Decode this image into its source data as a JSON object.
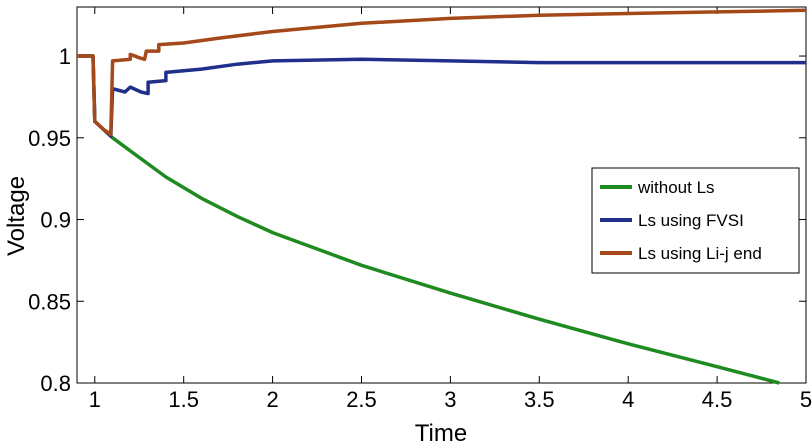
{
  "chart_data": {
    "type": "line",
    "title": "",
    "xlabel": "Time",
    "ylabel": "Voltage",
    "xlim": [
      0.9,
      5
    ],
    "ylim": [
      0.8,
      1.03
    ],
    "xticks": [
      1,
      1.5,
      2,
      2.5,
      3,
      3.5,
      4,
      4.5,
      5
    ],
    "xtick_labels": [
      "1",
      "1.5",
      "2",
      "2.5",
      "3",
      "3.5",
      "4",
      "4.5",
      "5"
    ],
    "yticks": [
      0.8,
      0.85,
      0.9,
      0.95,
      1
    ],
    "ytick_labels": [
      "0.8",
      "0.85",
      "0.9",
      "0.95",
      "1"
    ],
    "grid": false,
    "legend_position": "right",
    "series": [
      {
        "name": "without Ls",
        "color": "#1f8a1f",
        "points": [
          [
            0.9,
            1.0
          ],
          [
            0.99,
            1.0
          ],
          [
            1.0,
            0.96
          ],
          [
            1.05,
            0.955
          ],
          [
            1.1,
            0.95
          ],
          [
            1.2,
            0.942
          ],
          [
            1.4,
            0.926
          ],
          [
            1.6,
            0.913
          ],
          [
            1.8,
            0.902
          ],
          [
            2.0,
            0.892
          ],
          [
            2.5,
            0.872
          ],
          [
            3.0,
            0.855
          ],
          [
            3.5,
            0.839
          ],
          [
            4.0,
            0.824
          ],
          [
            4.5,
            0.81
          ],
          [
            4.85,
            0.8
          ]
        ]
      },
      {
        "name": "Ls using FVSI",
        "color": "#1f2f8a",
        "points": [
          [
            0.9,
            1.0
          ],
          [
            0.99,
            1.0
          ],
          [
            1.0,
            0.96
          ],
          [
            1.05,
            0.955
          ],
          [
            1.09,
            0.951
          ],
          [
            1.1,
            0.98
          ],
          [
            1.17,
            0.978
          ],
          [
            1.2,
            0.981
          ],
          [
            1.26,
            0.978
          ],
          [
            1.3,
            0.977
          ],
          [
            1.3,
            0.984
          ],
          [
            1.4,
            0.985
          ],
          [
            1.4,
            0.99
          ],
          [
            1.6,
            0.992
          ],
          [
            1.8,
            0.995
          ],
          [
            2.0,
            0.997
          ],
          [
            2.5,
            0.998
          ],
          [
            3.0,
            0.997
          ],
          [
            3.5,
            0.996
          ],
          [
            4.0,
            0.996
          ],
          [
            4.5,
            0.996
          ],
          [
            5.0,
            0.996
          ]
        ]
      },
      {
        "name": "Ls using Li-j end",
        "color": "#a5481a",
        "points": [
          [
            0.9,
            1.0
          ],
          [
            0.99,
            1.0
          ],
          [
            1.0,
            0.96
          ],
          [
            1.05,
            0.955
          ],
          [
            1.09,
            0.952
          ],
          [
            1.1,
            0.997
          ],
          [
            1.2,
            0.998
          ],
          [
            1.2,
            1.001
          ],
          [
            1.25,
            0.999
          ],
          [
            1.28,
            0.998
          ],
          [
            1.29,
            1.003
          ],
          [
            1.36,
            1.003
          ],
          [
            1.36,
            1.007
          ],
          [
            1.5,
            1.008
          ],
          [
            1.7,
            1.011
          ],
          [
            2.0,
            1.015
          ],
          [
            2.5,
            1.02
          ],
          [
            3.0,
            1.023
          ],
          [
            3.5,
            1.025
          ],
          [
            4.0,
            1.026
          ],
          [
            4.5,
            1.027
          ],
          [
            5.0,
            1.028
          ]
        ]
      }
    ]
  }
}
